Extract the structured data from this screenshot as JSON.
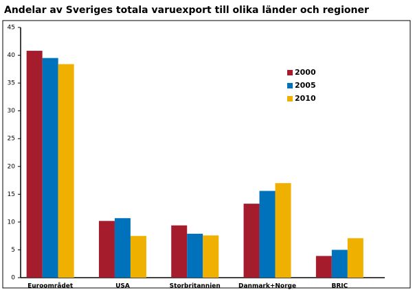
{
  "chart_data": {
    "type": "bar",
    "title": "Andelar av Sveriges totala varuexport till olika länder och regioner",
    "categories": [
      "Euroområdet",
      "USA",
      "Storbritannien",
      "Danmark+Norge",
      "BRIC"
    ],
    "series": [
      {
        "name": "2000",
        "color": "#a51d2d",
        "values": [
          40.8,
          10.2,
          9.4,
          13.3,
          3.9
        ]
      },
      {
        "name": "2005",
        "color": "#0072bc",
        "values": [
          39.5,
          10.7,
          7.9,
          15.6,
          5.0
        ]
      },
      {
        "name": "2010",
        "color": "#f0b000",
        "values": [
          38.4,
          7.5,
          7.6,
          17.0,
          7.1
        ]
      }
    ],
    "ylim": [
      0,
      45
    ],
    "yticks": [
      0,
      5,
      10,
      15,
      20,
      25,
      30,
      35,
      40,
      45
    ],
    "legend": "upper right",
    "grid": false
  }
}
